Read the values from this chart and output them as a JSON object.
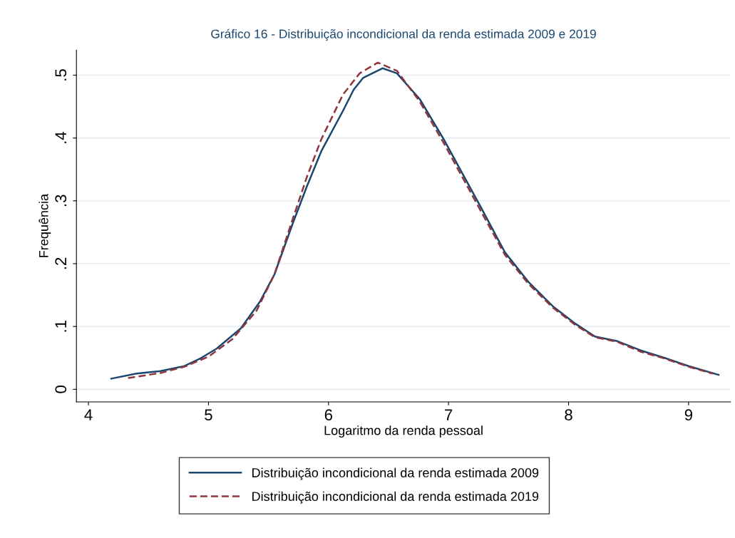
{
  "chart_data": {
    "type": "line",
    "title": "Gráfico 16 - Distribuição incondicional da renda estimada 2009 e 2019",
    "xlabel": "Logaritmo da renda pessoal",
    "ylabel": "Frequência",
    "xlim": [
      3.9,
      9.35
    ],
    "xticks": [
      4,
      5,
      6,
      7,
      8,
      9
    ],
    "ylim": [
      -0.02,
      0.54
    ],
    "yticks": [
      {
        "value": 0,
        "label": "0"
      },
      {
        "value": 0.1,
        "label": ".1"
      },
      {
        "value": 0.2,
        "label": ".2"
      },
      {
        "value": 0.3,
        "label": ".3"
      },
      {
        "value": 0.4,
        "label": ".4"
      },
      {
        "value": 0.5,
        "label": ".5"
      }
    ],
    "grid": "y",
    "legend": "bottom",
    "marker": "none",
    "series": [
      {
        "name": "Distribuição incondicional da renda estimada 2009",
        "color": "#1a476f",
        "line_style": "solid",
        "x": [
          4.19,
          4.4,
          4.6,
          4.8,
          4.94,
          5.07,
          5.27,
          5.43,
          5.55,
          5.7,
          5.82,
          5.94,
          6.12,
          6.21,
          6.29,
          6.45,
          6.57,
          6.76,
          6.96,
          7.12,
          7.28,
          7.47,
          7.67,
          7.87,
          8.06,
          8.22,
          8.4,
          8.6,
          8.8,
          9.0,
          9.25
        ],
        "values": [
          0.017,
          0.025,
          0.029,
          0.037,
          0.05,
          0.065,
          0.097,
          0.14,
          0.183,
          0.263,
          0.323,
          0.379,
          0.443,
          0.477,
          0.496,
          0.511,
          0.503,
          0.462,
          0.398,
          0.342,
          0.286,
          0.218,
          0.17,
          0.132,
          0.104,
          0.084,
          0.077,
          0.062,
          0.05,
          0.037,
          0.023
        ]
      },
      {
        "name": "Distribuição incondicional da renda estimada 2019",
        "color": "#90353b",
        "line_style": "dashed",
        "x": [
          4.33,
          4.6,
          4.8,
          5.0,
          5.2,
          5.4,
          5.55,
          5.7,
          5.82,
          5.94,
          6.12,
          6.26,
          6.41,
          6.57,
          6.76,
          6.96,
          7.12,
          7.28,
          7.47,
          7.67,
          7.87,
          8.06,
          8.22,
          8.4,
          8.6,
          8.8,
          9.0,
          9.2
        ],
        "values": [
          0.018,
          0.026,
          0.036,
          0.052,
          0.08,
          0.125,
          0.183,
          0.27,
          0.338,
          0.398,
          0.469,
          0.503,
          0.52,
          0.507,
          0.458,
          0.392,
          0.336,
          0.28,
          0.214,
          0.167,
          0.13,
          0.102,
          0.083,
          0.076,
          0.06,
          0.049,
          0.036,
          0.025
        ]
      }
    ]
  }
}
